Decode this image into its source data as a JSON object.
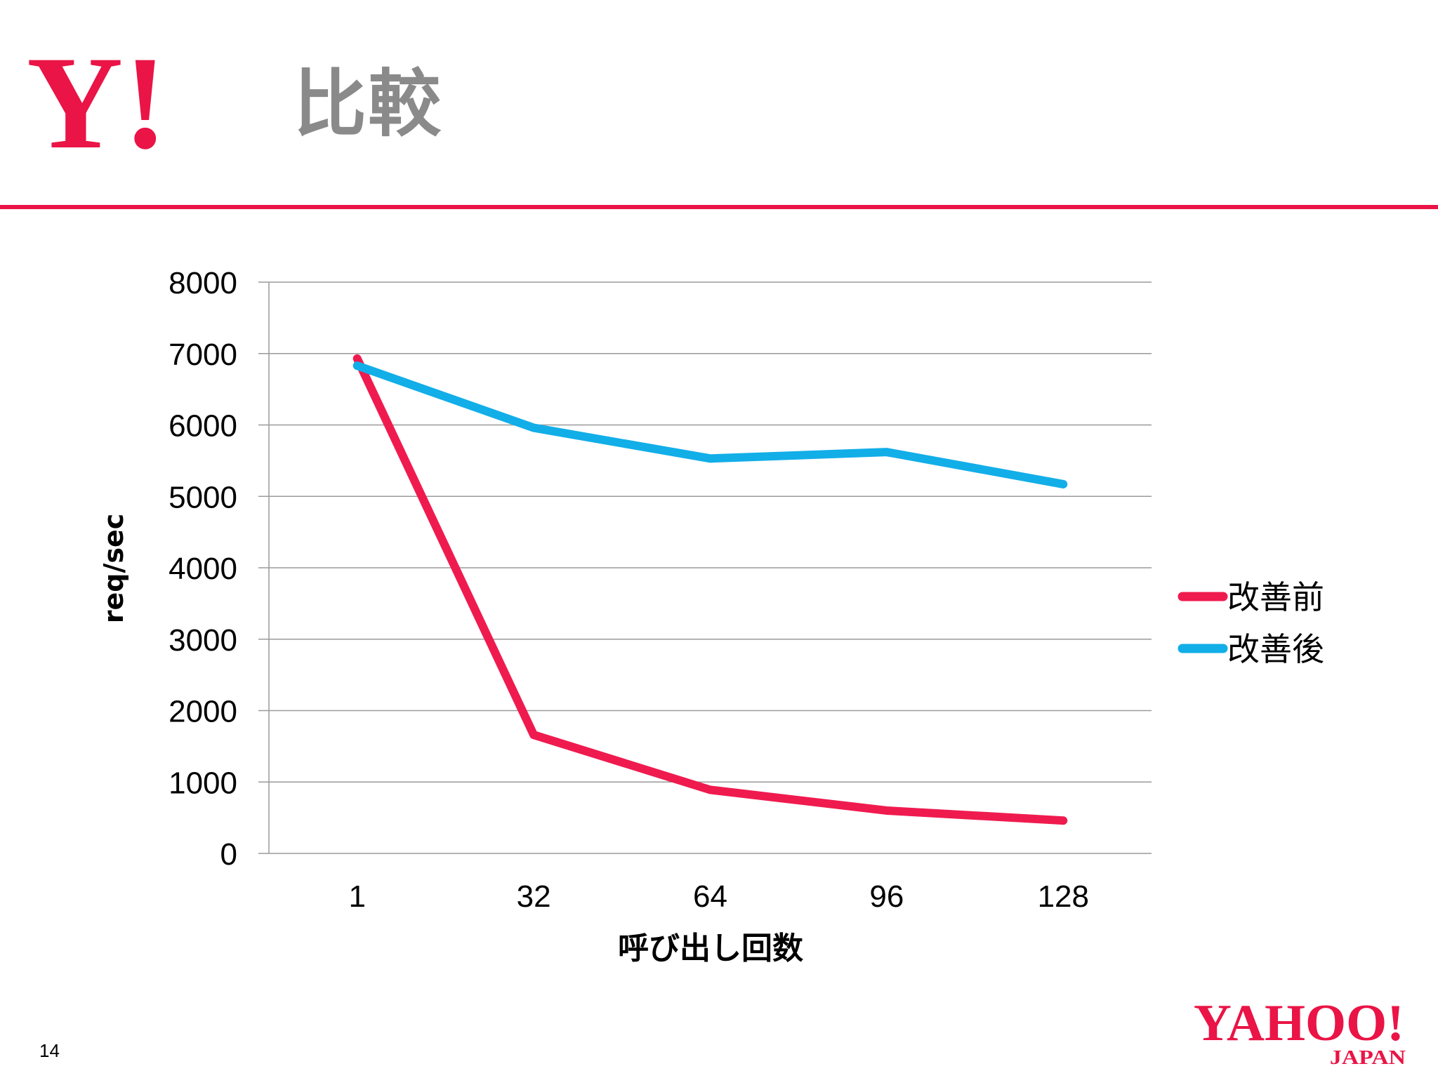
{
  "slide": {
    "title": "比較",
    "page_number": "14",
    "top_logo_text": "Y!",
    "bottom_logo_text": "YAHOO!",
    "bottom_logo_subtext": "JAPAN"
  },
  "colors": {
    "brand_red": "#ea1446",
    "series_before": "#ef1b4f",
    "series_after": "#12aee8",
    "gridline": "#9a9a9a",
    "title_gray": "#8a8a8a"
  },
  "chart_data": {
    "type": "line",
    "title": "",
    "xlabel": "呼び出し回数",
    "ylabel": "req/sec",
    "categories": [
      "1",
      "32",
      "64",
      "96",
      "128"
    ],
    "ylim": [
      0,
      8000
    ],
    "yticks": [
      "0",
      "1000",
      "2000",
      "3000",
      "4000",
      "5000",
      "6000",
      "7000",
      "8000"
    ],
    "grid": true,
    "legend_position": "right",
    "series": [
      {
        "name": "改善前",
        "color": "#ef1b4f",
        "values": [
          6930,
          1660,
          890,
          600,
          460
        ]
      },
      {
        "name": "改善後",
        "color": "#12aee8",
        "values": [
          6830,
          5960,
          5530,
          5620,
          5170
        ]
      }
    ]
  }
}
